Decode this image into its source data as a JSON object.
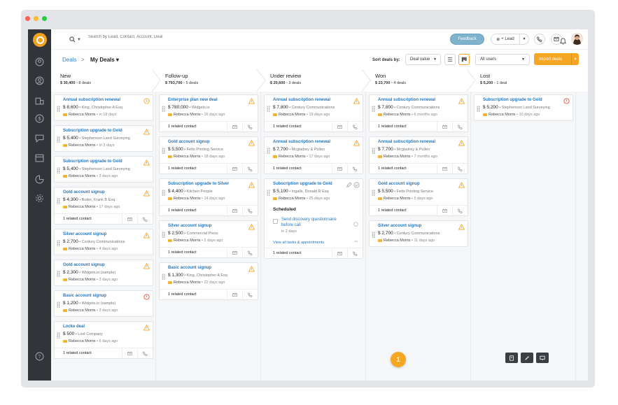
{
  "app": {
    "brand_color": "#f5a623",
    "accent": "#2a76b8"
  },
  "topbar": {
    "search_placeholder": "Search by Lead, Contact, Account, Deal",
    "feedback_label": "Feedback",
    "lead_label": "+ Lead"
  },
  "subbar": {
    "crumb_deals": "Deals",
    "crumb_sep": ">",
    "crumb_current": "My Deals ▾",
    "sort_label": "Sort deals by:",
    "sort_value": "Deal value",
    "users_value": "All users",
    "import_label": "Import deals"
  },
  "stages": [
    {
      "name": "New",
      "amount": "$ 30,400",
      "count": "8 deals"
    },
    {
      "name": "Follow-up",
      "amount": "$ 793,700",
      "count": "5 deals"
    },
    {
      "name": "Under review",
      "amount": "$ 20,600",
      "count": "3 deals"
    },
    {
      "name": "Won",
      "amount": "$ 23,700",
      "count": "4 deals"
    },
    {
      "name": "Lost",
      "amount": "$ 5,200",
      "count": "1 deal"
    }
  ],
  "columns": [
    {
      "cards": [
        {
          "title": "Annual subscription renewal",
          "amount": "$ 8,600",
          "company": "King, Christopher A Esq",
          "owner": "Rebecca Morris",
          "due": "in 18 days",
          "status": "clock"
        },
        {
          "title": "Subscription upgrade to Gold",
          "amount": "$ 5,400",
          "company": "Stephenson Land Surveying",
          "owner": "Rebecca Morris",
          "due": "in 3 days",
          "status": "warn"
        },
        {
          "title": "Subscription upgrade to Gold",
          "amount": "$ 5,400",
          "company": "Stephenson Land Surveying",
          "owner": "Rebecca Morris",
          "due": "3 days ago",
          "status": "warn"
        },
        {
          "title": "Gold account signup",
          "amount": "$ 4,300",
          "company": "Butler, Frank B Esq",
          "owner": "Rebecca Morris",
          "due": "17 days ago",
          "status": "warn",
          "related": "1 related contact"
        },
        {
          "title": "Silver account signup",
          "amount": "$ 2,700",
          "company": "Century Communications",
          "owner": "Rebecca Morris",
          "due": "4 days ago",
          "status": "warn"
        },
        {
          "title": "Gold account signup",
          "amount": "$ 2,300",
          "company": "Widgets.io (sample)",
          "owner": "Rebecca Morris",
          "due": "3 days ago",
          "status": "warn"
        },
        {
          "title": "Basic account signup",
          "amount": "$ 1,200",
          "company": "Widgets.io (sample)",
          "owner": "Rebecca Morris",
          "due": "3 days ago",
          "status": "alert"
        },
        {
          "title": "Locke deal",
          "amount": "$ 500",
          "company": "Lost Company",
          "owner": "Rebecca Morris",
          "due": "6 days ago",
          "status": "warn",
          "related": "1 related contact"
        }
      ]
    },
    {
      "cards": [
        {
          "title": "Enterprise plan new deal",
          "amount": "$ 780,000",
          "company": "Widgets.io",
          "owner": "Rebecca Morris",
          "due": "16 days ago",
          "status": "warn",
          "related": "1 related contact"
        },
        {
          "title": "Gold account signup",
          "amount": "$ 5,500",
          "company": "Fetts Printing Service",
          "owner": "Rebecca Morris",
          "due": "18 days ago",
          "status": "warn",
          "related": "1 related contact"
        },
        {
          "title": "Subscription upgrade to Silver",
          "amount": "$ 4,400",
          "company": "Kitchen People",
          "owner": "Rebecca Morris",
          "due": "14 days ago",
          "status": "warn",
          "related": "1 related contact"
        },
        {
          "title": "Silver account signup",
          "amount": "$ 2,500",
          "company": "Commercial Press",
          "owner": "Rebecca Morris",
          "due": "2 days ago",
          "status": "warn",
          "related": "1 related contact"
        },
        {
          "title": "Basic account signup",
          "amount": "$ 1,300",
          "company": "King, Christopher A Esq",
          "owner": "Rebecca Morris",
          "due": "22 days ago",
          "status": "warn",
          "related": "1 related contact"
        }
      ]
    },
    {
      "cards": [
        {
          "title": "Annual subscription renewal",
          "amount": "$ 7,800",
          "company": "Century Communications",
          "owner": "Rebecca Morris",
          "due": "19 days ago",
          "status": "warn",
          "related": "1 related contact"
        },
        {
          "title": "Annual subscription renewal",
          "amount": "$ 7,700",
          "company": "Mcgladrey & Pullen",
          "owner": "Rebecca Morris",
          "due": "17 days ago",
          "status": "warn",
          "related": "1 related contact"
        },
        {
          "title": "Subscription upgrade to Gold",
          "amount": "$ 5,100",
          "company": "Ingalls, Donald R Esq",
          "owner": "Rebecca Morris",
          "due": "25 days ago",
          "status": "ok",
          "related": "1 related contact",
          "scheduled": "Scheduled",
          "task": "Send discovery questionnaire before call",
          "task_due": "in 2 days",
          "view_all": "View all tasks & appointments",
          "more": "•••"
        }
      ]
    },
    {
      "cards": [
        {
          "title": "Annual subscription renewal",
          "amount": "$ 7,800",
          "company": "Century Communications",
          "owner": "Rebecca Morris",
          "due": "6 months ago",
          "status": "warn",
          "related": "1 related contact"
        },
        {
          "title": "Annual subscription renewal",
          "amount": "$ 7,700",
          "company": "Mcgladrey & Pullen",
          "owner": "Rebecca Morris",
          "due": "7 months ago",
          "status": "warn",
          "related": "1 related contact"
        },
        {
          "title": "Gold account signup",
          "amount": "$ 5,500",
          "company": "Fetts Printing Service",
          "owner": "Rebecca Morris",
          "due": "5 days ago",
          "status": "warn",
          "related": "1 related contact"
        },
        {
          "title": "Silver account signup",
          "amount": "$ 2,700",
          "company": "Century Communications",
          "owner": "Rebecca Morris",
          "due": "11 days ago",
          "status": "warn"
        }
      ]
    },
    {
      "cards": [
        {
          "title": "Subscription upgrade to Gold",
          "amount": "$ 5,200",
          "company": "Stephenson Land Surveying",
          "owner": "Rebecca Morris",
          "due": "10 days ago",
          "status": "alert"
        }
      ]
    }
  ],
  "badge": "1"
}
